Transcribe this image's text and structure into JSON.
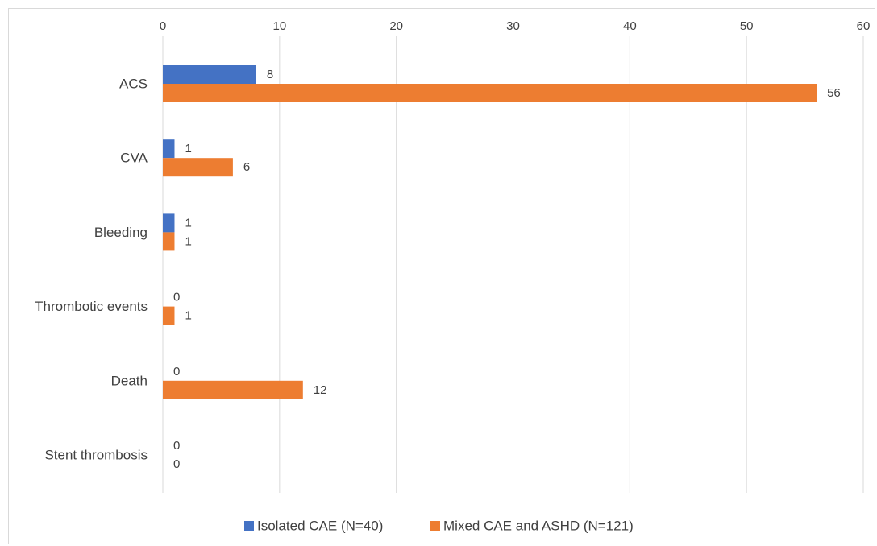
{
  "chart_data": {
    "type": "bar",
    "orientation": "horizontal",
    "categories": [
      "ACS",
      "CVA",
      "Bleeding",
      "Thrombotic events",
      "Death",
      "Stent thrombosis"
    ],
    "series": [
      {
        "name": "Isolated CAE (N=40)",
        "values": [
          8,
          1,
          1,
          0,
          0,
          0
        ],
        "color": "#4472c4"
      },
      {
        "name": "Mixed CAE and ASHD (N=121)",
        "values": [
          56,
          6,
          1,
          1,
          12,
          0
        ],
        "color": "#ed7d31"
      }
    ],
    "xlim": [
      0,
      60
    ],
    "x_ticks": [
      "0",
      "10",
      "20",
      "30",
      "40",
      "50",
      "60"
    ],
    "x_axis_position": "top",
    "grid": true,
    "legend_position": "bottom",
    "data_labels": true
  }
}
